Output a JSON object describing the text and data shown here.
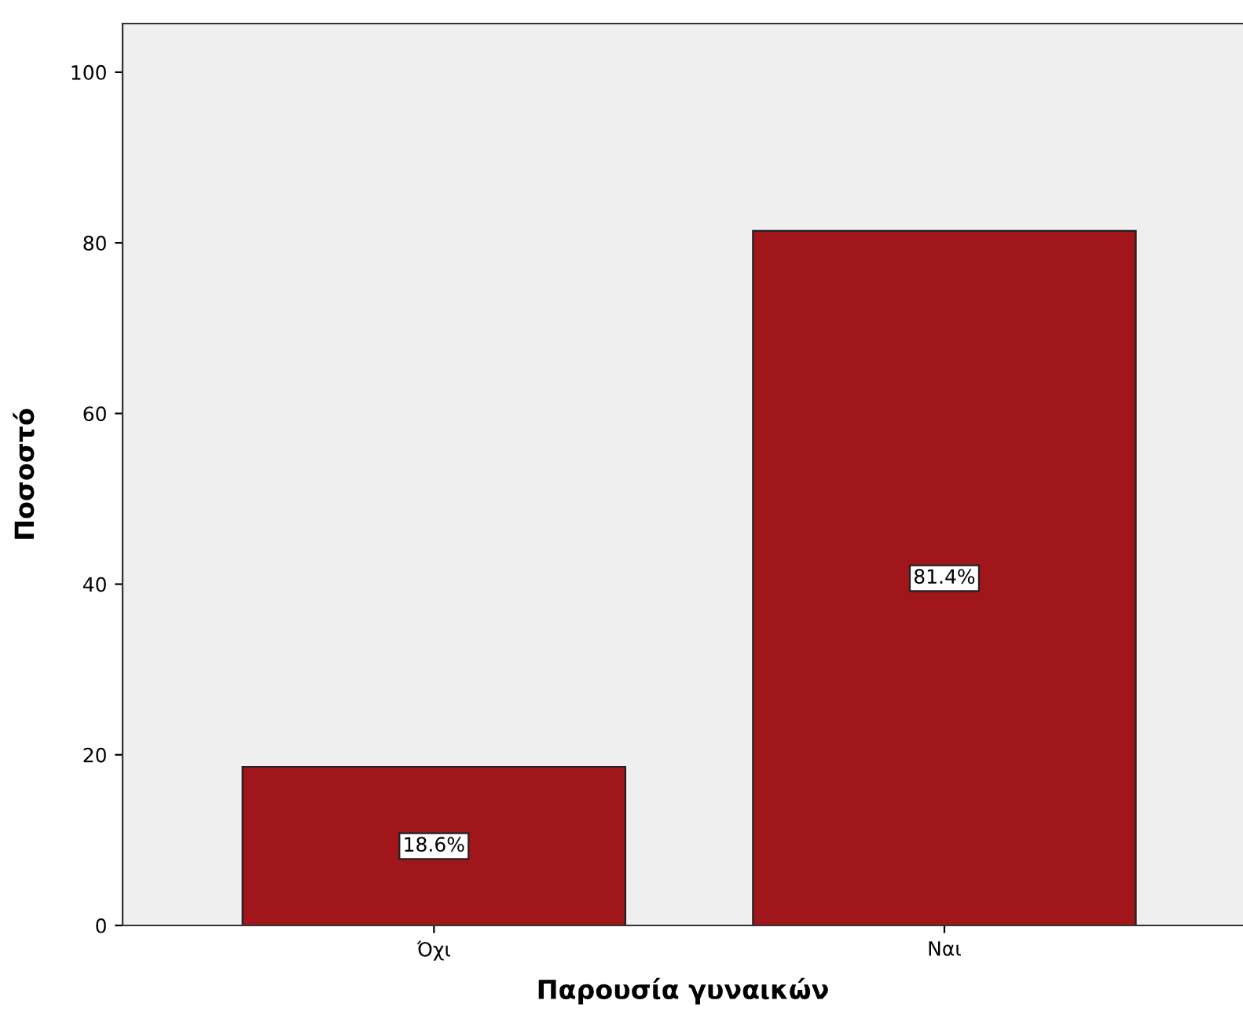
{
  "chart_data": {
    "type": "bar",
    "xlabel": "Παρουσία γυναικών",
    "ylabel": "Ποσοστό",
    "categories": [
      "Όχι",
      "Ναι"
    ],
    "values": [
      18.6,
      81.4
    ],
    "value_labels": [
      "18.6%",
      "81.4%"
    ],
    "color": "#a0161b",
    "ylim": [
      0,
      105.7
    ],
    "yticks": [
      0,
      20,
      40,
      60,
      80,
      100
    ],
    "grid": false
  }
}
